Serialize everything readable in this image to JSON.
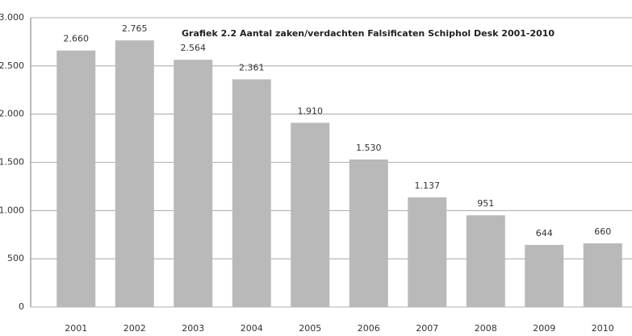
{
  "chart_data": {
    "type": "bar",
    "title": "Grafiek 2.2 Aantal zaken/verdachten Falsificaten  Schiphol Desk 2001-2010",
    "categories": [
      "2001",
      "2002",
      "2003",
      "2004",
      "2005",
      "2006",
      "2007",
      "2008",
      "2009",
      "2010"
    ],
    "values": [
      2660,
      2765,
      2564,
      2361,
      1910,
      1530,
      1137,
      951,
      644,
      660
    ],
    "value_labels": [
      "2.660",
      "2.765",
      "2.564",
      "2.361",
      "1.910",
      "1.530",
      "1.137",
      "951",
      "644",
      "660"
    ],
    "color": "#b9b9b9",
    "ylim": [
      0,
      3000
    ],
    "yticks": [
      0,
      500,
      {
        "value": 1000,
        "label": "1.000"
      },
      {
        "value": 1500,
        "label": "1.500"
      },
      {
        "value": 2000,
        "label": "2.000"
      },
      {
        "value": 2500,
        "label": "2.500"
      },
      {
        "value": 3000,
        "label": "3.000"
      }
    ],
    "grid": true
  }
}
